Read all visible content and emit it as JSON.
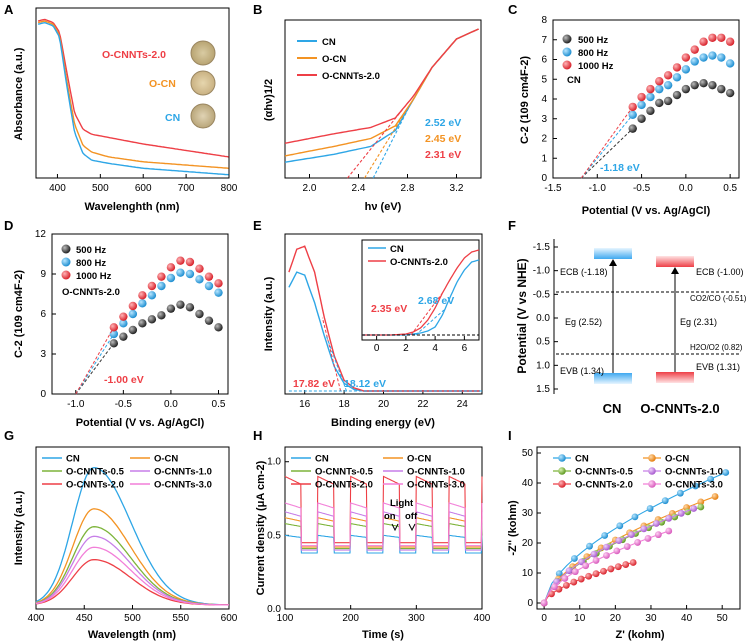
{
  "colors": {
    "cn": "#2ea6e6",
    "ocn": "#f39323",
    "occ": "#ee3f46",
    "black": "#333333",
    "purple": "#c77fe8",
    "green": "#7db43a",
    "pink": "#f27fd8",
    "gray": "#444444"
  },
  "panels": [
    "A",
    "B",
    "C",
    "D",
    "E",
    "F",
    "G",
    "H",
    "I"
  ],
  "chart_data": [
    {
      "id": "A",
      "type": "line",
      "xlabel": "Wavelenghth (nm)",
      "ylabel": "Absorbance (a.u.)",
      "xlim": [
        350,
        800
      ],
      "xticks": [
        400,
        500,
        600,
        700,
        800
      ],
      "series": [
        {
          "name": "O-CNNTs-2.0",
          "color": "#ee3f46",
          "x": [
            355,
            370,
            390,
            405,
            420,
            440,
            460,
            480,
            520,
            600,
            700,
            800
          ],
          "y": [
            0.97,
            0.98,
            0.96,
            0.9,
            0.68,
            0.4,
            0.3,
            0.27,
            0.25,
            0.21,
            0.17,
            0.13
          ]
        },
        {
          "name": "O-CN",
          "color": "#f39323",
          "x": [
            355,
            370,
            390,
            405,
            420,
            440,
            460,
            480,
            520,
            600,
            700,
            800
          ],
          "y": [
            0.96,
            0.97,
            0.95,
            0.88,
            0.63,
            0.33,
            0.2,
            0.16,
            0.13,
            0.1,
            0.08,
            0.06
          ]
        },
        {
          "name": "CN",
          "color": "#2ea6e6",
          "x": [
            355,
            370,
            390,
            405,
            420,
            440,
            460,
            480,
            520,
            600,
            700,
            800
          ],
          "y": [
            0.95,
            0.96,
            0.94,
            0.87,
            0.6,
            0.28,
            0.15,
            0.11,
            0.09,
            0.06,
            0.04,
            0.02
          ]
        }
      ]
    },
    {
      "id": "B",
      "type": "line",
      "xlabel": "hν (eV)",
      "ylabel": "(αhν)1/2",
      "xlim": [
        1.8,
        3.4
      ],
      "xticks": [
        2.0,
        2.4,
        2.8,
        3.2
      ],
      "series": [
        {
          "name": "CN",
          "color": "#2ea6e6",
          "x": [
            1.8,
            2.2,
            2.5,
            2.7,
            2.85,
            3.0,
            3.2,
            3.4
          ],
          "y": [
            0.1,
            0.15,
            0.2,
            0.3,
            0.5,
            0.7,
            0.88,
            0.95
          ]
        },
        {
          "name": "O-CN",
          "color": "#f39323",
          "x": [
            1.8,
            2.2,
            2.5,
            2.7,
            2.85,
            3.0,
            3.2,
            3.4
          ],
          "y": [
            0.14,
            0.2,
            0.25,
            0.33,
            0.5,
            0.7,
            0.88,
            0.95
          ]
        },
        {
          "name": "O-CNNTs-2.0",
          "color": "#ee3f46",
          "x": [
            1.8,
            2.2,
            2.5,
            2.7,
            2.85,
            3.0,
            3.2,
            3.4
          ],
          "y": [
            0.22,
            0.28,
            0.32,
            0.38,
            0.52,
            0.7,
            0.88,
            0.95
          ]
        }
      ],
      "band_gaps": [
        "2.52 eV",
        "2.45 eV",
        "2.31 eV"
      ]
    },
    {
      "id": "C",
      "type": "scatter",
      "xlabel": "Potential (V vs. Ag/AgCl)",
      "ylabel": "C-2 (109 cm4F-2)",
      "xlim": [
        -1.5,
        0.6
      ],
      "ylim": [
        0,
        8
      ],
      "xticks": [
        -1.5,
        -1.0,
        -0.5,
        0.0,
        0.5
      ],
      "yticks": [
        0,
        1,
        2,
        3,
        4,
        5,
        6,
        7,
        8
      ],
      "sample": "CN",
      "flatband": "-1.18 eV",
      "series": [
        {
          "name": "500 Hz",
          "color": "#333333",
          "x": [
            -0.6,
            -0.5,
            -0.4,
            -0.3,
            -0.2,
            -0.1,
            0.0,
            0.1,
            0.2,
            0.3,
            0.4,
            0.5
          ],
          "y": [
            2.5,
            3.0,
            3.4,
            3.8,
            3.9,
            4.2,
            4.5,
            4.7,
            4.8,
            4.7,
            4.5,
            4.3
          ]
        },
        {
          "name": "800 Hz",
          "color": "#2ea6e6",
          "x": [
            -0.6,
            -0.5,
            -0.4,
            -0.3,
            -0.2,
            -0.1,
            0.0,
            0.1,
            0.2,
            0.3,
            0.4,
            0.5
          ],
          "y": [
            3.2,
            3.7,
            4.1,
            4.5,
            4.7,
            5.1,
            5.5,
            5.9,
            6.1,
            6.2,
            6.1,
            5.8
          ]
        },
        {
          "name": "1000 Hz",
          "color": "#ee3f46",
          "x": [
            -0.6,
            -0.5,
            -0.4,
            -0.3,
            -0.2,
            -0.1,
            0.0,
            0.1,
            0.2,
            0.3,
            0.4,
            0.5
          ],
          "y": [
            3.6,
            4.1,
            4.5,
            4.9,
            5.2,
            5.6,
            6.1,
            6.5,
            6.9,
            7.1,
            7.1,
            6.9
          ]
        }
      ]
    },
    {
      "id": "D",
      "type": "scatter",
      "xlabel": "Potential (V vs. Ag/AgCl)",
      "ylabel": "C-2 (109 cm4F-2)",
      "xlim": [
        -1.25,
        0.6
      ],
      "ylim": [
        0,
        12
      ],
      "xticks": [
        -1.0,
        -0.5,
        0.0,
        0.5
      ],
      "yticks": [
        0,
        3,
        6,
        9,
        12
      ],
      "sample": "O-CNNTs-2.0",
      "flatband": "-1.00 eV",
      "series": [
        {
          "name": "500 Hz",
          "color": "#333333",
          "x": [
            -0.6,
            -0.5,
            -0.4,
            -0.3,
            -0.2,
            -0.1,
            0.0,
            0.1,
            0.2,
            0.3,
            0.4,
            0.5
          ],
          "y": [
            3.8,
            4.3,
            4.8,
            5.3,
            5.6,
            5.9,
            6.4,
            6.7,
            6.5,
            6.0,
            5.5,
            5.0
          ]
        },
        {
          "name": "800 Hz",
          "color": "#2ea6e6",
          "x": [
            -0.6,
            -0.5,
            -0.4,
            -0.3,
            -0.2,
            -0.1,
            0.0,
            0.1,
            0.2,
            0.3,
            0.4,
            0.5
          ],
          "y": [
            4.5,
            5.3,
            6.0,
            6.8,
            7.4,
            8.1,
            8.7,
            9.1,
            9.0,
            8.6,
            8.1,
            7.6
          ]
        },
        {
          "name": "1000 Hz",
          "color": "#ee3f46",
          "x": [
            -0.6,
            -0.5,
            -0.4,
            -0.3,
            -0.2,
            -0.1,
            0.0,
            0.1,
            0.2,
            0.3,
            0.4,
            0.5
          ],
          "y": [
            5.0,
            5.8,
            6.6,
            7.4,
            8.1,
            8.8,
            9.5,
            10.0,
            9.9,
            9.4,
            8.8,
            8.3
          ]
        }
      ]
    },
    {
      "id": "E",
      "type": "line",
      "xlabel": "Binding energy (eV)",
      "ylabel": "Intensity (a.u.)",
      "xlim": [
        15,
        25
      ],
      "xticks": [
        16,
        18,
        20,
        22,
        24
      ],
      "series": [
        {
          "name": "CN",
          "color": "#2ea6e6",
          "x": [
            15.2,
            15.6,
            16,
            16.5,
            17,
            17.5,
            18,
            18.5,
            19,
            21,
            25
          ],
          "y": [
            0.7,
            0.8,
            0.78,
            0.6,
            0.38,
            0.18,
            0.07,
            0.03,
            0.02,
            0.02,
            0.02
          ]
        },
        {
          "name": "O-CNNTs-2.0",
          "color": "#ee3f46",
          "x": [
            15.2,
            15.6,
            16,
            16.5,
            17,
            17.5,
            18,
            18.5,
            19,
            21,
            25
          ],
          "y": [
            0.8,
            0.95,
            0.97,
            0.8,
            0.5,
            0.25,
            0.09,
            0.04,
            0.02,
            0.02,
            0.02
          ]
        }
      ],
      "annotations": [
        "17.82 eV",
        "18.12 eV"
      ],
      "inset": {
        "xlim": [
          -1,
          7
        ],
        "xticks": [
          0,
          2,
          4,
          6
        ],
        "annotations": [
          "2.35 eV",
          "2.68 eV"
        ],
        "series": [
          {
            "name": "CN",
            "color": "#2ea6e6",
            "x": [
              -1,
              1,
              2,
              2.5,
              3,
              3.5,
              4,
              4.5,
              5,
              5.5,
              6,
              6.5,
              7
            ],
            "y": [
              0.05,
              0.05,
              0.05,
              0.06,
              0.07,
              0.09,
              0.13,
              0.25,
              0.42,
              0.58,
              0.7,
              0.78,
              0.8
            ]
          },
          {
            "name": "O-CNNTs-2.0",
            "color": "#ee3f46",
            "x": [
              -1,
              1,
              2,
              2.5,
              3,
              3.5,
              4,
              4.5,
              5,
              5.5,
              6,
              6.5,
              7
            ],
            "y": [
              0.05,
              0.05,
              0.06,
              0.08,
              0.12,
              0.2,
              0.32,
              0.47,
              0.6,
              0.72,
              0.82,
              0.88,
              0.9
            ]
          }
        ]
      }
    },
    {
      "id": "G",
      "type": "line",
      "xlabel": "Wavelength (nm)",
      "ylabel": "Intensity (a.u.)",
      "xlim": [
        400,
        600
      ],
      "xticks": [
        400,
        450,
        500,
        550,
        600
      ],
      "series": [
        {
          "name": "CN",
          "color": "#2ea6e6",
          "peak": 1.0
        },
        {
          "name": "O-CN",
          "color": "#f39323",
          "peak": 0.7
        },
        {
          "name": "O-CNNTs-0.5",
          "color": "#7db43a",
          "peak": 0.57
        },
        {
          "name": "O-CNNTs-1.0",
          "color": "#c77fe8",
          "peak": 0.5
        },
        {
          "name": "O-CNNTs-2.0",
          "color": "#ee3f46",
          "peak": 0.33
        },
        {
          "name": "O-CNNTs-3.0",
          "color": "#f27fd8",
          "peak": 0.42
        }
      ],
      "peak_wavelength": 460
    },
    {
      "id": "H",
      "type": "line",
      "xlabel": "Time (s)",
      "ylabel": "Current density (μA cm-2)",
      "xlim": [
        100,
        400
      ],
      "ylim": [
        0,
        1.1
      ],
      "xticks": [
        100,
        200,
        300,
        400
      ],
      "yticks": [
        0.0,
        0.5,
        1.0
      ],
      "light_label": "Light",
      "on_label": "on",
      "off_label": "off",
      "series": [
        {
          "name": "CN",
          "color": "#2ea6e6",
          "dark": 0.38,
          "light": 0.5
        },
        {
          "name": "O-CN",
          "color": "#f39323",
          "dark": 0.42,
          "light": 0.62
        },
        {
          "name": "O-CNNTs-0.5",
          "color": "#7db43a",
          "dark": 0.41,
          "light": 0.58
        },
        {
          "name": "O-CNNTs-1.0",
          "color": "#c77fe8",
          "dark": 0.4,
          "light": 0.66
        },
        {
          "name": "O-CNNTs-2.0",
          "color": "#ee3f46",
          "dark": 0.45,
          "light": 0.9
        },
        {
          "name": "O-CNNTs-3.0",
          "color": "#f27fd8",
          "dark": 0.43,
          "light": 0.72
        }
      ]
    },
    {
      "id": "I",
      "type": "scatter",
      "xlabel": "Z' (kohm)",
      "ylabel": "-Z'' (kohm)",
      "xlim": [
        -2,
        55
      ],
      "ylim": [
        -2,
        52
      ],
      "xticks": [
        0,
        10,
        20,
        30,
        40,
        50
      ],
      "yticks": [
        0,
        10,
        20,
        30,
        40,
        50
      ],
      "series": [
        {
          "name": "CN",
          "color": "#2ea6e6",
          "end": [
            51,
            43.5
          ]
        },
        {
          "name": "O-CN",
          "color": "#f39323",
          "end": [
            48,
            35.5
          ]
        },
        {
          "name": "O-CNNTs-0.5",
          "color": "#7db43a",
          "end": [
            44,
            32
          ]
        },
        {
          "name": "O-CNNTs-1.0",
          "color": "#c77fe8",
          "end": [
            42,
            31.5
          ]
        },
        {
          "name": "O-CNNTs-2.0",
          "color": "#ee3f46",
          "end": [
            25,
            13.5
          ]
        },
        {
          "name": "O-CNNTs-3.0",
          "color": "#f27fd8",
          "end": [
            35,
            24
          ]
        }
      ]
    }
  ],
  "panelF": {
    "ylabel": "Potential (V vs NHE)",
    "yticks": [
      "-1.5",
      "-1.0",
      "-0.5",
      "0.0",
      "0.5",
      "1.0",
      "1.5"
    ],
    "cn": {
      "name": "CN",
      "ecb": "ECB (-1.18)",
      "eg": "Eg (2.52)",
      "evb": "EVB (1.34)"
    },
    "occ": {
      "name": "O-CNNTs-2.0",
      "ecb": "ECB (-1.00)",
      "eg": "Eg (2.31)",
      "evb": "EVB (1.31)"
    },
    "redox1": "CO2/CO (-0.51)",
    "redox2": "H2O/O2 (0.82)"
  },
  "photos": {
    "ocnnts": "O-CNNTs-2.0",
    "ocn": "O-CN",
    "cn": "CN"
  }
}
